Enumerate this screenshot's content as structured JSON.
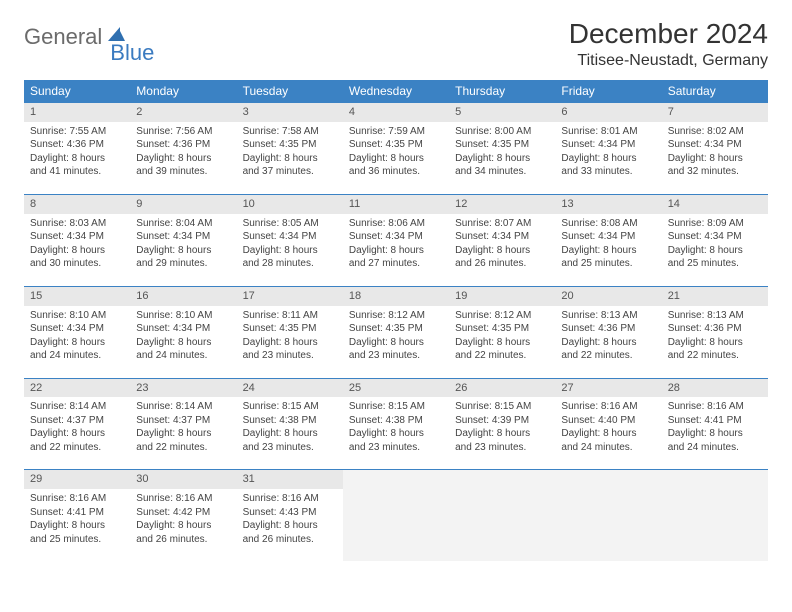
{
  "brand": {
    "word1": "General",
    "word2": "Blue"
  },
  "title": "December 2024",
  "location": "Titisee-Neustadt, Germany",
  "colors": {
    "header_bg": "#3b82c4",
    "header_text": "#ffffff",
    "daynum_bg": "#e8e8e8",
    "border": "#3b82c4",
    "logo_gray": "#6b6b6b",
    "logo_blue": "#3b7bc0",
    "page_bg": "#ffffff"
  },
  "typography": {
    "title_fontsize": 28,
    "location_fontsize": 16,
    "header_fontsize": 12,
    "cell_fontsize": 10
  },
  "weekdays": [
    "Sunday",
    "Monday",
    "Tuesday",
    "Wednesday",
    "Thursday",
    "Friday",
    "Saturday"
  ],
  "weeks": [
    [
      {
        "n": "1",
        "sr": "Sunrise: 7:55 AM",
        "ss": "Sunset: 4:36 PM",
        "d1": "Daylight: 8 hours",
        "d2": "and 41 minutes."
      },
      {
        "n": "2",
        "sr": "Sunrise: 7:56 AM",
        "ss": "Sunset: 4:36 PM",
        "d1": "Daylight: 8 hours",
        "d2": "and 39 minutes."
      },
      {
        "n": "3",
        "sr": "Sunrise: 7:58 AM",
        "ss": "Sunset: 4:35 PM",
        "d1": "Daylight: 8 hours",
        "d2": "and 37 minutes."
      },
      {
        "n": "4",
        "sr": "Sunrise: 7:59 AM",
        "ss": "Sunset: 4:35 PM",
        "d1": "Daylight: 8 hours",
        "d2": "and 36 minutes."
      },
      {
        "n": "5",
        "sr": "Sunrise: 8:00 AM",
        "ss": "Sunset: 4:35 PM",
        "d1": "Daylight: 8 hours",
        "d2": "and 34 minutes."
      },
      {
        "n": "6",
        "sr": "Sunrise: 8:01 AM",
        "ss": "Sunset: 4:34 PM",
        "d1": "Daylight: 8 hours",
        "d2": "and 33 minutes."
      },
      {
        "n": "7",
        "sr": "Sunrise: 8:02 AM",
        "ss": "Sunset: 4:34 PM",
        "d1": "Daylight: 8 hours",
        "d2": "and 32 minutes."
      }
    ],
    [
      {
        "n": "8",
        "sr": "Sunrise: 8:03 AM",
        "ss": "Sunset: 4:34 PM",
        "d1": "Daylight: 8 hours",
        "d2": "and 30 minutes."
      },
      {
        "n": "9",
        "sr": "Sunrise: 8:04 AM",
        "ss": "Sunset: 4:34 PM",
        "d1": "Daylight: 8 hours",
        "d2": "and 29 minutes."
      },
      {
        "n": "10",
        "sr": "Sunrise: 8:05 AM",
        "ss": "Sunset: 4:34 PM",
        "d1": "Daylight: 8 hours",
        "d2": "and 28 minutes."
      },
      {
        "n": "11",
        "sr": "Sunrise: 8:06 AM",
        "ss": "Sunset: 4:34 PM",
        "d1": "Daylight: 8 hours",
        "d2": "and 27 minutes."
      },
      {
        "n": "12",
        "sr": "Sunrise: 8:07 AM",
        "ss": "Sunset: 4:34 PM",
        "d1": "Daylight: 8 hours",
        "d2": "and 26 minutes."
      },
      {
        "n": "13",
        "sr": "Sunrise: 8:08 AM",
        "ss": "Sunset: 4:34 PM",
        "d1": "Daylight: 8 hours",
        "d2": "and 25 minutes."
      },
      {
        "n": "14",
        "sr": "Sunrise: 8:09 AM",
        "ss": "Sunset: 4:34 PM",
        "d1": "Daylight: 8 hours",
        "d2": "and 25 minutes."
      }
    ],
    [
      {
        "n": "15",
        "sr": "Sunrise: 8:10 AM",
        "ss": "Sunset: 4:34 PM",
        "d1": "Daylight: 8 hours",
        "d2": "and 24 minutes."
      },
      {
        "n": "16",
        "sr": "Sunrise: 8:10 AM",
        "ss": "Sunset: 4:34 PM",
        "d1": "Daylight: 8 hours",
        "d2": "and 24 minutes."
      },
      {
        "n": "17",
        "sr": "Sunrise: 8:11 AM",
        "ss": "Sunset: 4:35 PM",
        "d1": "Daylight: 8 hours",
        "d2": "and 23 minutes."
      },
      {
        "n": "18",
        "sr": "Sunrise: 8:12 AM",
        "ss": "Sunset: 4:35 PM",
        "d1": "Daylight: 8 hours",
        "d2": "and 23 minutes."
      },
      {
        "n": "19",
        "sr": "Sunrise: 8:12 AM",
        "ss": "Sunset: 4:35 PM",
        "d1": "Daylight: 8 hours",
        "d2": "and 22 minutes."
      },
      {
        "n": "20",
        "sr": "Sunrise: 8:13 AM",
        "ss": "Sunset: 4:36 PM",
        "d1": "Daylight: 8 hours",
        "d2": "and 22 minutes."
      },
      {
        "n": "21",
        "sr": "Sunrise: 8:13 AM",
        "ss": "Sunset: 4:36 PM",
        "d1": "Daylight: 8 hours",
        "d2": "and 22 minutes."
      }
    ],
    [
      {
        "n": "22",
        "sr": "Sunrise: 8:14 AM",
        "ss": "Sunset: 4:37 PM",
        "d1": "Daylight: 8 hours",
        "d2": "and 22 minutes."
      },
      {
        "n": "23",
        "sr": "Sunrise: 8:14 AM",
        "ss": "Sunset: 4:37 PM",
        "d1": "Daylight: 8 hours",
        "d2": "and 22 minutes."
      },
      {
        "n": "24",
        "sr": "Sunrise: 8:15 AM",
        "ss": "Sunset: 4:38 PM",
        "d1": "Daylight: 8 hours",
        "d2": "and 23 minutes."
      },
      {
        "n": "25",
        "sr": "Sunrise: 8:15 AM",
        "ss": "Sunset: 4:38 PM",
        "d1": "Daylight: 8 hours",
        "d2": "and 23 minutes."
      },
      {
        "n": "26",
        "sr": "Sunrise: 8:15 AM",
        "ss": "Sunset: 4:39 PM",
        "d1": "Daylight: 8 hours",
        "d2": "and 23 minutes."
      },
      {
        "n": "27",
        "sr": "Sunrise: 8:16 AM",
        "ss": "Sunset: 4:40 PM",
        "d1": "Daylight: 8 hours",
        "d2": "and 24 minutes."
      },
      {
        "n": "28",
        "sr": "Sunrise: 8:16 AM",
        "ss": "Sunset: 4:41 PM",
        "d1": "Daylight: 8 hours",
        "d2": "and 24 minutes."
      }
    ],
    [
      {
        "n": "29",
        "sr": "Sunrise: 8:16 AM",
        "ss": "Sunset: 4:41 PM",
        "d1": "Daylight: 8 hours",
        "d2": "and 25 minutes."
      },
      {
        "n": "30",
        "sr": "Sunrise: 8:16 AM",
        "ss": "Sunset: 4:42 PM",
        "d1": "Daylight: 8 hours",
        "d2": "and 26 minutes."
      },
      {
        "n": "31",
        "sr": "Sunrise: 8:16 AM",
        "ss": "Sunset: 4:43 PM",
        "d1": "Daylight: 8 hours",
        "d2": "and 26 minutes."
      },
      {
        "empty": true
      },
      {
        "empty": true
      },
      {
        "empty": true
      },
      {
        "empty": true
      }
    ]
  ]
}
